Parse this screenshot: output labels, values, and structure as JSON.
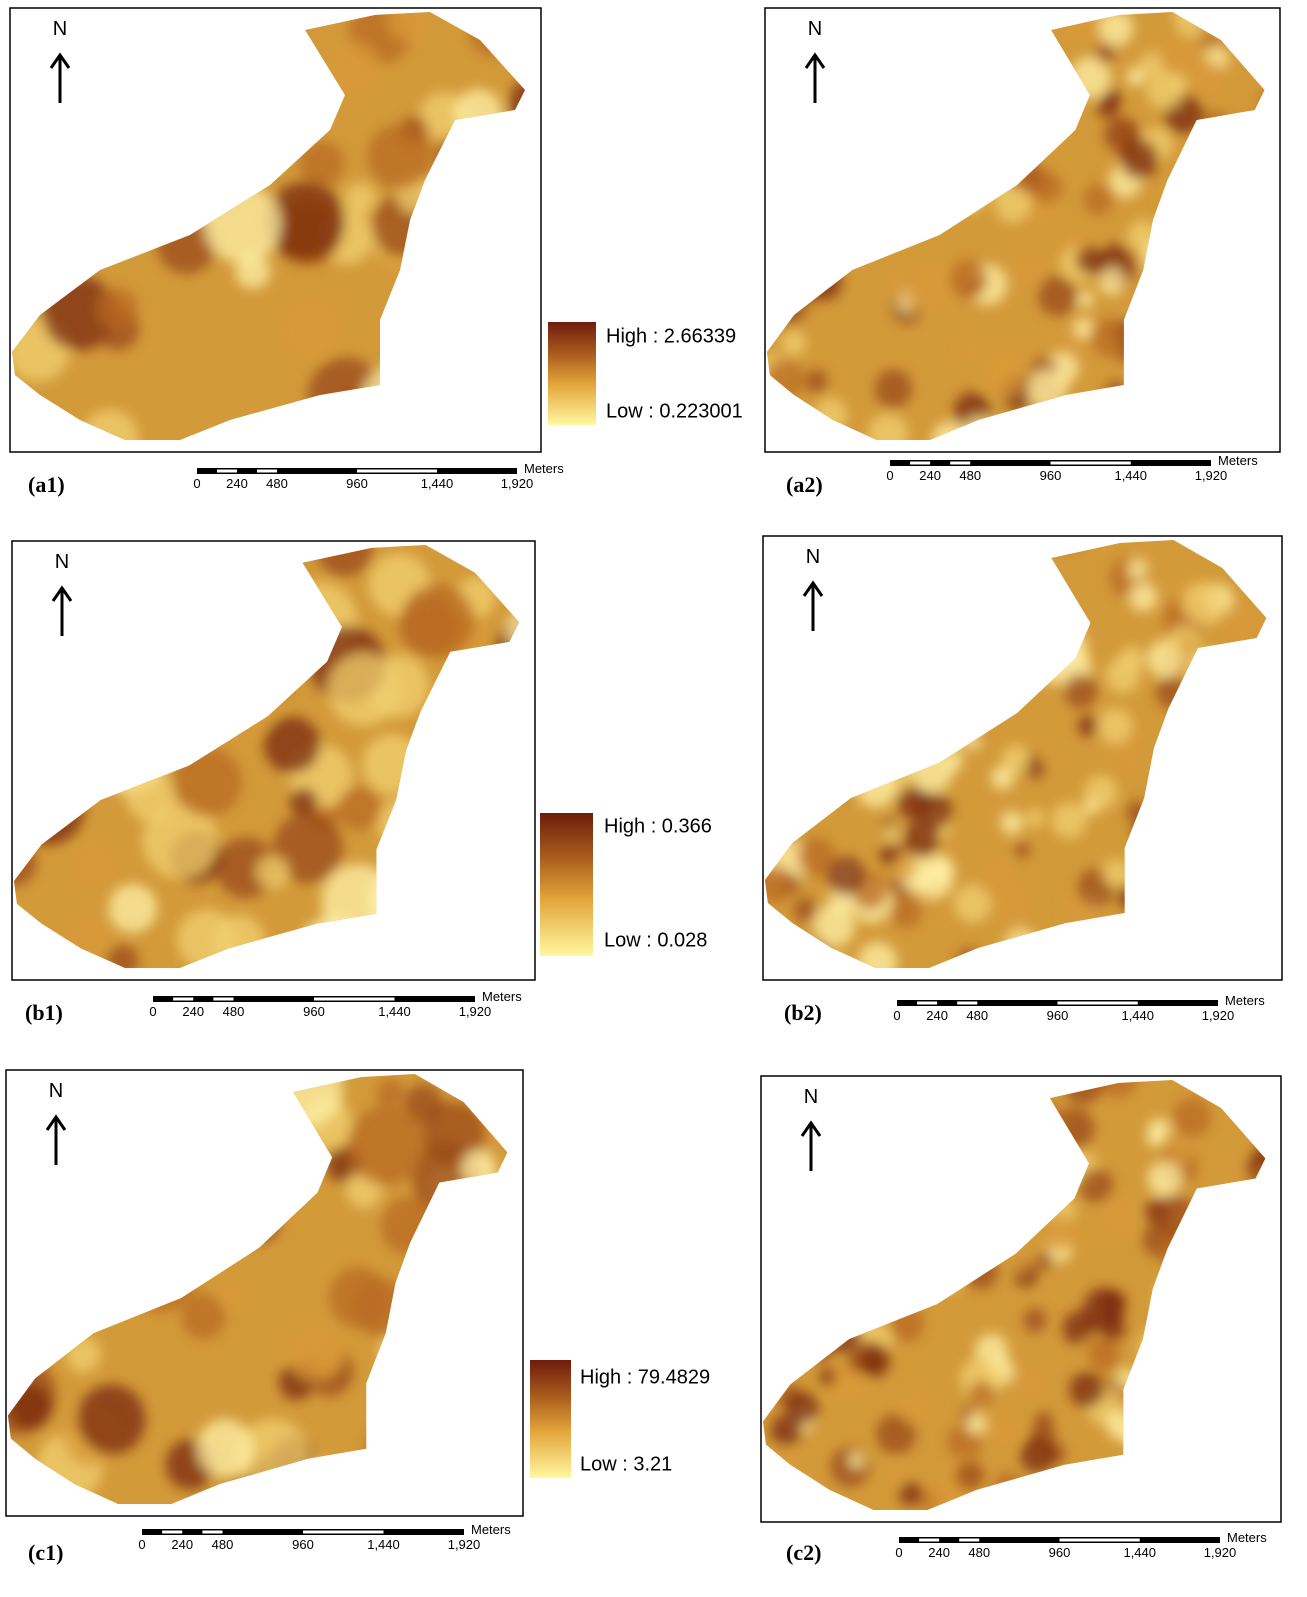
{
  "panels": [
    {
      "label": "(a1)",
      "north": "N",
      "legend": {
        "high": "High : 2.66339",
        "low": "Low : 0.223001"
      },
      "scale": {
        "ticks": [
          "0",
          "240",
          "480",
          "960",
          "1,440",
          "1,920"
        ],
        "unit": "Meters"
      }
    },
    {
      "label": "(a2)",
      "north": "N",
      "scale": {
        "ticks": [
          "0",
          "240",
          "480",
          "960",
          "1,440",
          "1,920"
        ],
        "unit": "Meters"
      }
    },
    {
      "label": "(b1)",
      "north": "N",
      "legend": {
        "high": "High : 0.366",
        "low": "Low : 0.028"
      },
      "scale": {
        "ticks": [
          "0",
          "240",
          "480",
          "960",
          "1,440",
          "1,920"
        ],
        "unit": "Meters"
      }
    },
    {
      "label": "(b2)",
      "north": "N",
      "scale": {
        "ticks": [
          "0",
          "240",
          "480",
          "960",
          "1,440",
          "1,920"
        ],
        "unit": "Meters"
      }
    },
    {
      "label": "(c1)",
      "north": "N",
      "legend": {
        "high": "High : 79.4829",
        "low": "Low : 3.21"
      },
      "scale": {
        "ticks": [
          "0",
          "240",
          "480",
          "960",
          "1,440",
          "1,920"
        ],
        "unit": "Meters"
      }
    },
    {
      "label": "(c2)",
      "north": "N",
      "scale": {
        "ticks": [
          "0",
          "240",
          "480",
          "960",
          "1,440",
          "1,920"
        ],
        "unit": "Meters"
      }
    }
  ]
}
